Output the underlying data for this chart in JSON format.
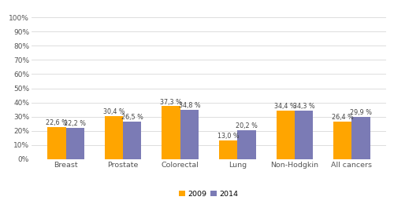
{
  "categories": [
    "Breast",
    "Prostate",
    "Colorectal",
    "Lung",
    "Non-Hodgkin",
    "All cancers"
  ],
  "values_2009": [
    22.6,
    30.4,
    37.3,
    13.0,
    34.4,
    26.4
  ],
  "values_2014": [
    22.2,
    26.5,
    34.8,
    20.2,
    34.3,
    29.9
  ],
  "labels_2009": [
    "22,6 %",
    "30,4 %",
    "37,3 %",
    "13,0 %",
    "34,4 %",
    "26,4 %"
  ],
  "labels_2014": [
    "22,2 %",
    "26,5 %",
    "34,8 %",
    "20,2 %",
    "34,3 %",
    "29,9 %"
  ],
  "color_2009": "#FFA500",
  "color_2014": "#7B7BB5",
  "legend_2009": "2009",
  "legend_2014": "2014",
  "yticks": [
    0,
    10,
    20,
    30,
    40,
    50,
    60,
    70,
    80,
    90,
    100
  ],
  "ylim": [
    0,
    108
  ],
  "bar_width": 0.32,
  "background_color": "#ffffff",
  "grid_color": "#d8d8d8",
  "label_fontsize": 5.8,
  "tick_fontsize": 6.5,
  "legend_fontsize": 6.8,
  "xticklabel_fontsize": 6.8
}
